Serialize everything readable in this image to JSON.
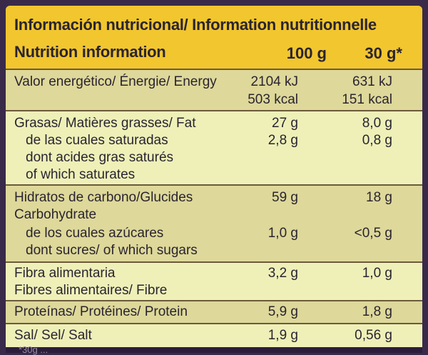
{
  "header": {
    "title_line1": "Información nutricional/ Information nutritionnelle",
    "title_line2": "Nutrition information",
    "col_100g": "100 g",
    "col_30g": "30 g*"
  },
  "rows": {
    "energy": {
      "name": "Valor energético/ Énergie/ Energy",
      "v100_kj": "2104 kJ",
      "v100_kcal": "503 kcal",
      "v30_kj": "631 kJ",
      "v30_kcal": "151 kcal"
    },
    "fat": {
      "name": "Grasas/ Matières grasses/ Fat",
      "sub1": "de las cuales saturadas",
      "sub2": "dont acides gras saturés",
      "sub3": "of which saturates",
      "v100": "27 g",
      "v30": "8,0 g",
      "v100_sat": "2,8 g",
      "v30_sat": "0,8 g"
    },
    "carbs": {
      "name": "Hidratos de carbono/Glucides",
      "name2": "Carbohydrate",
      "sub1": "de los cuales azúcares",
      "sub2": "dont sucres/ of which sugars",
      "v100": "59 g",
      "v30": "18 g",
      "v100_sugar": "1,0 g",
      "v30_sugar": "<0,5 g"
    },
    "fibre": {
      "name": "Fibra alimentaria",
      "name2": "Fibres alimentaires/ Fibre",
      "v100": "3,2 g",
      "v30": "1,0 g"
    },
    "protein": {
      "name": "Proteínas/ Protéines/ Protein",
      "v100": "5,9 g",
      "v30": "1,8 g"
    },
    "salt": {
      "name": "Sal/ Sel/ Salt",
      "v100": "1,9 g",
      "v30": "0,56 g"
    }
  },
  "footer": {
    "note": "*30g ..."
  }
}
